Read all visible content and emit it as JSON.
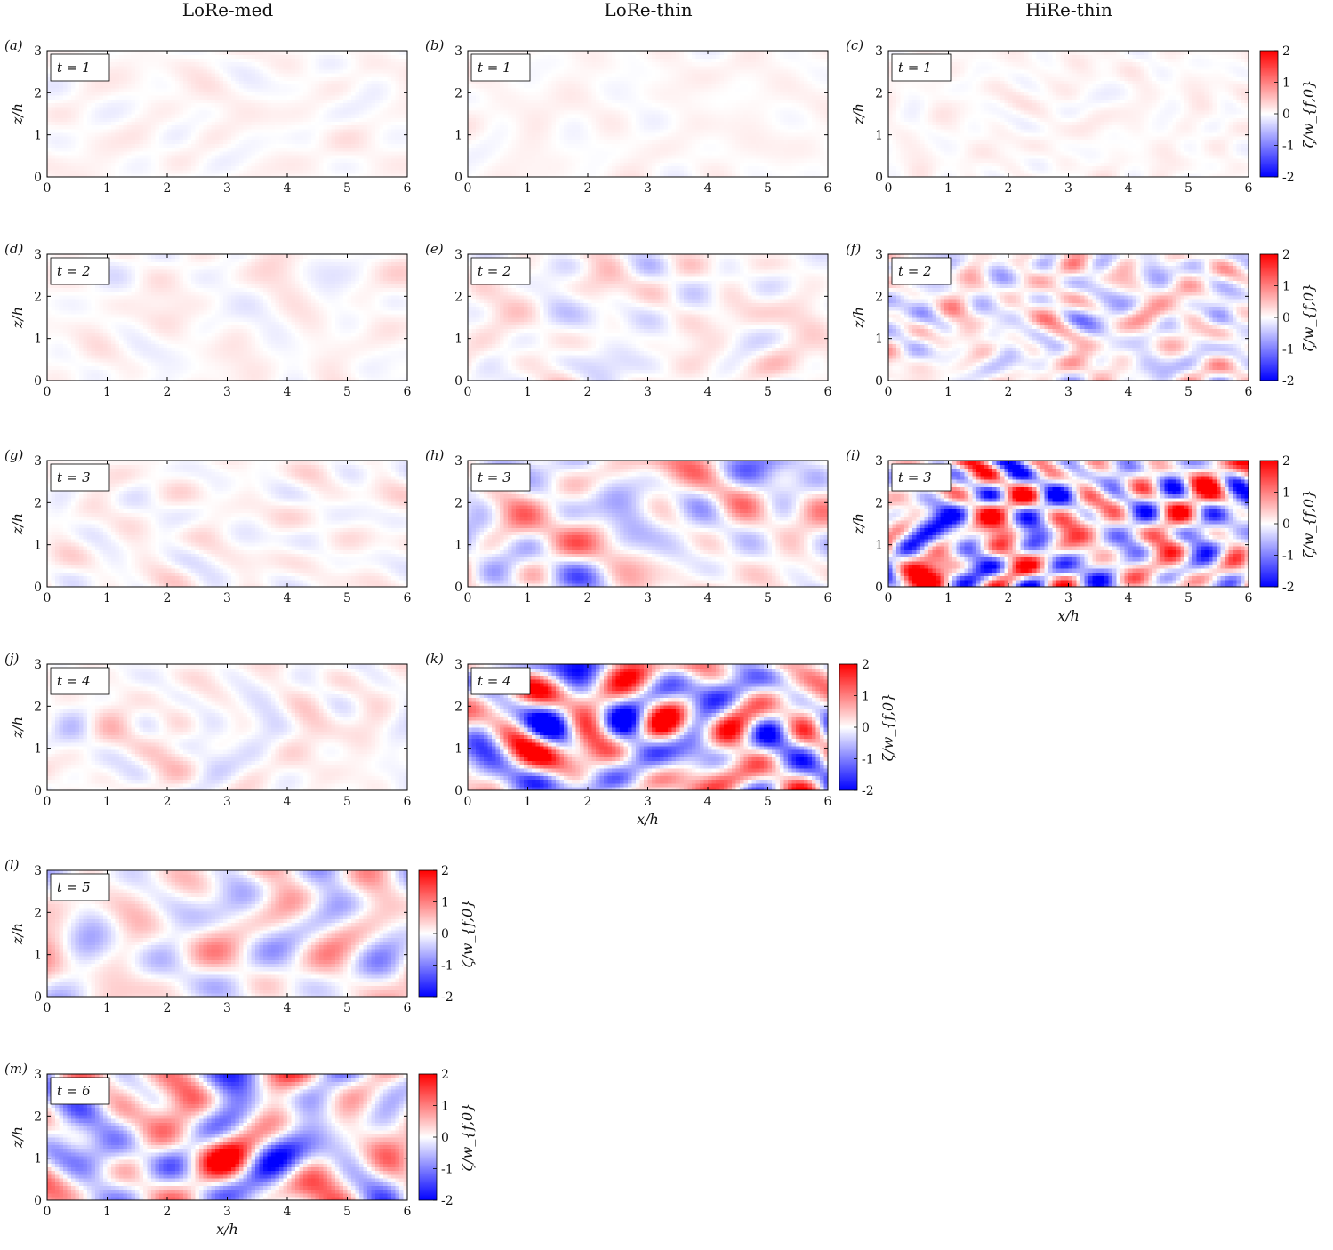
{
  "figure": {
    "column_titles": [
      "LoRe-med",
      "LoRe-thin",
      "HiRe-thin"
    ],
    "colors": {
      "min": "#0000ff",
      "mid": "#ffffff",
      "max": "#ff0000"
    }
  },
  "chart_data": [
    {
      "panel": "(a)",
      "case": "LoRe-med",
      "time_label": "t = 1",
      "t": 1,
      "type": "heatmap",
      "xlim": [
        0,
        6
      ],
      "ylim": [
        0,
        3
      ],
      "xticks": [
        0,
        1,
        2,
        3,
        4,
        5,
        6
      ],
      "yticks": [
        0,
        1,
        2,
        3
      ],
      "ylabel": "z/h",
      "xlabel": "",
      "amplitude": 0.12,
      "roughness": 0.4
    },
    {
      "panel": "(b)",
      "case": "LoRe-thin",
      "time_label": "t = 1",
      "t": 1,
      "type": "heatmap",
      "xlim": [
        0,
        6
      ],
      "ylim": [
        0,
        3
      ],
      "xticks": [
        0,
        1,
        2,
        3,
        4,
        5,
        6
      ],
      "yticks": [
        0,
        1,
        2,
        3
      ],
      "ylabel": "",
      "xlabel": "",
      "amplitude": 0.1,
      "roughness": 0.4
    },
    {
      "panel": "(c)",
      "case": "HiRe-thin",
      "time_label": "t = 1",
      "t": 1,
      "type": "heatmap",
      "xlim": [
        0,
        6
      ],
      "ylim": [
        0,
        3
      ],
      "xticks": [
        0,
        1,
        2,
        3,
        4,
        5,
        6
      ],
      "yticks": [
        0,
        1,
        2,
        3
      ],
      "ylabel": "z/h",
      "xlabel": "",
      "amplitude": 0.1,
      "roughness": 0.9
    },
    {
      "panel": "(d)",
      "case": "LoRe-med",
      "time_label": "t = 2",
      "t": 2,
      "type": "heatmap",
      "xlim": [
        0,
        6
      ],
      "ylim": [
        0,
        3
      ],
      "xticks": [
        0,
        1,
        2,
        3,
        4,
        5,
        6
      ],
      "yticks": [
        0,
        1,
        2,
        3
      ],
      "ylabel": "z/h",
      "xlabel": "",
      "amplitude": 0.15,
      "roughness": 0.4
    },
    {
      "panel": "(e)",
      "case": "LoRe-thin",
      "time_label": "t = 2",
      "t": 2,
      "type": "heatmap",
      "xlim": [
        0,
        6
      ],
      "ylim": [
        0,
        3
      ],
      "xticks": [
        0,
        1,
        2,
        3,
        4,
        5,
        6
      ],
      "yticks": [
        0,
        1,
        2,
        3
      ],
      "ylabel": "",
      "xlabel": "",
      "amplitude": 0.3,
      "roughness": 0.4
    },
    {
      "panel": "(f)",
      "case": "HiRe-thin",
      "time_label": "t = 2",
      "t": 2,
      "type": "heatmap",
      "xlim": [
        0,
        6
      ],
      "ylim": [
        0,
        3
      ],
      "xticks": [
        0,
        1,
        2,
        3,
        4,
        5,
        6
      ],
      "yticks": [
        0,
        1,
        2,
        3
      ],
      "ylabel": "z/h",
      "xlabel": "",
      "amplitude": 0.5,
      "roughness": 1.0
    },
    {
      "panel": "(g)",
      "case": "LoRe-med",
      "time_label": "t = 3",
      "t": 3,
      "type": "heatmap",
      "xlim": [
        0,
        6
      ],
      "ylim": [
        0,
        3
      ],
      "xticks": [
        0,
        1,
        2,
        3,
        4,
        5,
        6
      ],
      "yticks": [
        0,
        1,
        2,
        3
      ],
      "ylabel": "z/h",
      "xlabel": "",
      "amplitude": 0.18,
      "roughness": 0.5
    },
    {
      "panel": "(h)",
      "case": "LoRe-thin",
      "time_label": "t = 3",
      "t": 3,
      "type": "heatmap",
      "xlim": [
        0,
        6
      ],
      "ylim": [
        0,
        3
      ],
      "xticks": [
        0,
        1,
        2,
        3,
        4,
        5,
        6
      ],
      "yticks": [
        0,
        1,
        2,
        3
      ],
      "ylabel": "",
      "xlabel": "",
      "amplitude": 0.6,
      "roughness": 0.3
    },
    {
      "panel": "(i)",
      "case": "HiRe-thin",
      "time_label": "t = 3",
      "t": 3,
      "type": "heatmap",
      "xlim": [
        0,
        6
      ],
      "ylim": [
        0,
        3
      ],
      "xticks": [
        0,
        1,
        2,
        3,
        4,
        5,
        6
      ],
      "yticks": [
        0,
        1,
        2,
        3
      ],
      "ylabel": "z/h",
      "xlabel": "x/h",
      "amplitude": 1.5,
      "roughness": 0.8
    },
    {
      "panel": "(j)",
      "case": "LoRe-med",
      "time_label": "t = 4",
      "t": 4,
      "type": "heatmap",
      "xlim": [
        0,
        6
      ],
      "ylim": [
        0,
        3
      ],
      "xticks": [
        0,
        1,
        2,
        3,
        4,
        5,
        6
      ],
      "yticks": [
        0,
        1,
        2,
        3
      ],
      "ylabel": "z/h",
      "xlabel": "",
      "amplitude": 0.25,
      "roughness": 0.4
    },
    {
      "panel": "(k)",
      "case": "LoRe-thin",
      "time_label": "t = 4",
      "t": 4,
      "type": "heatmap",
      "xlim": [
        0,
        6
      ],
      "ylim": [
        0,
        3
      ],
      "xticks": [
        0,
        1,
        2,
        3,
        4,
        5,
        6
      ],
      "yticks": [
        0,
        1,
        2,
        3
      ],
      "ylabel": "",
      "xlabel": "x/h",
      "amplitude": 1.4,
      "roughness": 0.3
    },
    {
      "panel": "(l)",
      "case": "LoRe-med",
      "time_label": "t = 5",
      "t": 5,
      "type": "heatmap",
      "xlim": [
        0,
        6
      ],
      "ylim": [
        0,
        3
      ],
      "xticks": [
        0,
        1,
        2,
        3,
        4,
        5,
        6
      ],
      "yticks": [
        0,
        1,
        2,
        3
      ],
      "ylabel": "z/h",
      "xlabel": "",
      "amplitude": 0.55,
      "roughness": 0.2
    },
    {
      "panel": "(m)",
      "case": "LoRe-med",
      "time_label": "t = 6",
      "t": 6,
      "type": "heatmap",
      "xlim": [
        0,
        6
      ],
      "ylim": [
        0,
        3
      ],
      "xticks": [
        0,
        1,
        2,
        3,
        4,
        5,
        6
      ],
      "yticks": [
        0,
        1,
        2,
        3
      ],
      "ylabel": "z/h",
      "xlabel": "x/h",
      "amplitude": 1.1,
      "roughness": 0.2
    }
  ],
  "colorbars": [
    {
      "anchor_panel": "(c)",
      "label": "ζ/w_{f,0}",
      "range": [
        -2,
        2
      ],
      "ticks": [
        -2,
        -1,
        0,
        1,
        2
      ]
    },
    {
      "anchor_panel": "(f)",
      "label": "ζ/w_{f,0}",
      "range": [
        -2,
        2
      ],
      "ticks": [
        -2,
        -1,
        0,
        1,
        2
      ]
    },
    {
      "anchor_panel": "(i)",
      "label": "ζ/w_{f,0}",
      "range": [
        -2,
        2
      ],
      "ticks": [
        -2,
        -1,
        0,
        1,
        2
      ]
    },
    {
      "anchor_panel": "(k)",
      "label": "ζ/w_{f,0}",
      "range": [
        -2,
        2
      ],
      "ticks": [
        -2,
        -1,
        0,
        1,
        2
      ]
    },
    {
      "anchor_panel": "(l)",
      "label": "ζ/w_{f,0}",
      "range": [
        -2,
        2
      ],
      "ticks": [
        -2,
        -1,
        0,
        1,
        2
      ]
    },
    {
      "anchor_panel": "(m)",
      "label": "ζ/w_{f,0}",
      "range": [
        -2,
        2
      ],
      "ticks": [
        -2,
        -1,
        0,
        1,
        2
      ]
    }
  ]
}
